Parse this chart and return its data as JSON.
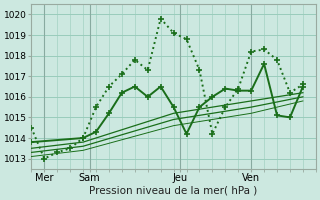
{
  "title": "Pression niveau de la mer( hPa )",
  "background_color": "#cce8e0",
  "grid_color": "#99ccbb",
  "line_color": "#1a6e1a",
  "vline_color": "#88aaa0",
  "xlim": [
    0,
    22
  ],
  "ylim": [
    1012.5,
    1020.5
  ],
  "yticks": [
    1013,
    1014,
    1015,
    1016,
    1017,
    1018,
    1019,
    1020
  ],
  "xtick_labels": [
    "Mer",
    "Sam",
    "Jeu",
    "Ven"
  ],
  "xtick_positions": [
    1.0,
    4.5,
    11.5,
    17.0
  ],
  "vline_positions": [
    1.0,
    4.5,
    11.5,
    17.0
  ],
  "series": [
    {
      "x": [
        0,
        1,
        2,
        3,
        4,
        5,
        6,
        7,
        8,
        9,
        10,
        11,
        12,
        13,
        14,
        15,
        16,
        17,
        18,
        19,
        20,
        21
      ],
      "y": [
        1014.5,
        1013.0,
        1013.3,
        1013.5,
        1014.0,
        1015.5,
        1016.5,
        1017.1,
        1017.8,
        1017.3,
        1019.8,
        1019.1,
        1018.8,
        1017.3,
        1014.2,
        1015.5,
        1016.4,
        1018.2,
        1018.3,
        1017.8,
        1016.2,
        1016.6
      ],
      "linestyle": ":",
      "marker": "+",
      "lw": 1.4,
      "ms": 5
    },
    {
      "x": [
        0,
        4,
        5,
        6,
        7,
        8,
        9,
        10,
        11,
        12,
        13,
        14,
        15,
        16,
        17,
        18,
        19,
        20,
        21
      ],
      "y": [
        1013.8,
        1014.0,
        1014.3,
        1015.2,
        1016.2,
        1016.5,
        1016.0,
        1016.5,
        1015.5,
        1014.2,
        1015.5,
        1016.0,
        1016.4,
        1016.3,
        1016.3,
        1017.6,
        1015.1,
        1015.0,
        1016.5
      ],
      "linestyle": "-",
      "marker": "+",
      "lw": 1.4,
      "ms": 5
    },
    {
      "x": [
        0,
        4,
        11,
        14,
        17,
        21
      ],
      "y": [
        1013.5,
        1013.8,
        1015.2,
        1015.5,
        1015.8,
        1016.2
      ],
      "linestyle": "-",
      "marker": "",
      "lw": 0.9,
      "ms": 0
    },
    {
      "x": [
        0,
        4,
        11,
        14,
        17,
        21
      ],
      "y": [
        1013.3,
        1013.6,
        1014.9,
        1015.2,
        1015.5,
        1016.0
      ],
      "linestyle": "-",
      "marker": "",
      "lw": 0.9,
      "ms": 0
    },
    {
      "x": [
        0,
        4,
        11,
        14,
        17,
        21
      ],
      "y": [
        1013.1,
        1013.4,
        1014.6,
        1014.9,
        1015.2,
        1015.8
      ],
      "linestyle": "-",
      "marker": "",
      "lw": 0.7,
      "ms": 0
    }
  ]
}
